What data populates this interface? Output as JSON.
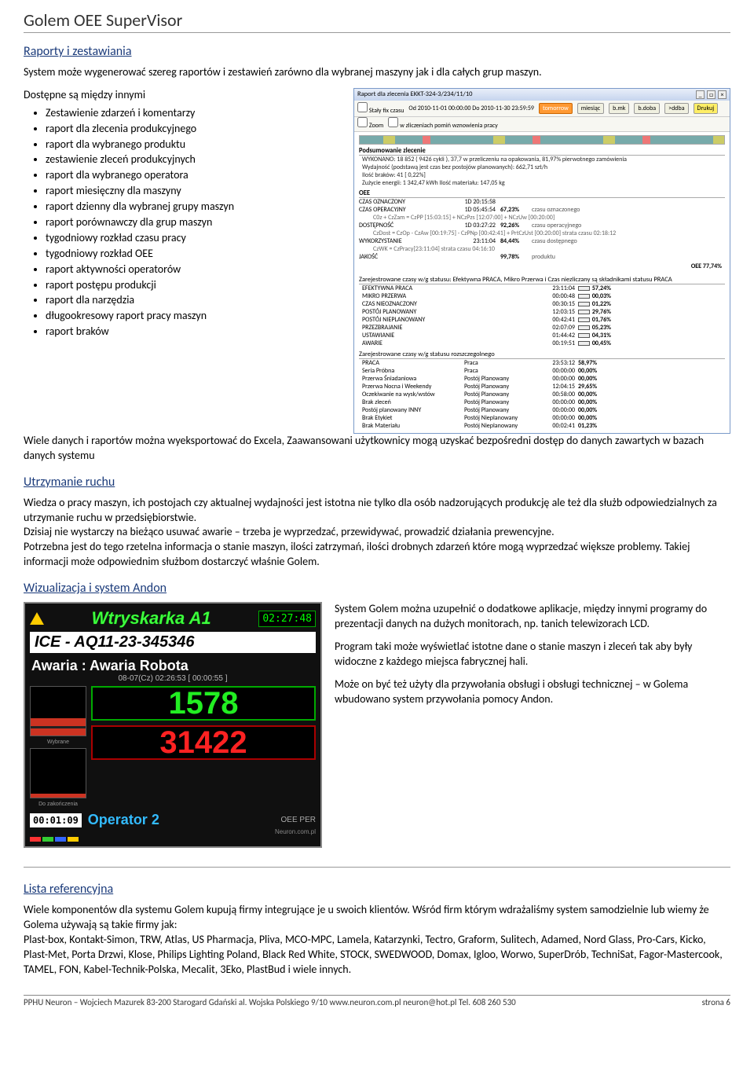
{
  "title": "Golem OEE SuperVisor",
  "sections": {
    "raporty_heading": "Raporty i zestawiania",
    "raporty_intro": "System może wygenerować szereg raportów i zestawień zarówno dla wybranej maszyny jak i dla całych grup maszyn.",
    "dostepne_lead": "Dostępne są między innymi",
    "bullets": [
      "Zestawienie zdarzeń i komentarzy",
      "raport dla zlecenia produkcyjnego",
      "raport dla wybranego produktu",
      "zestawienie zleceń produkcyjnych",
      "raport dla wybranego  operatora",
      "raport miesięczny dla maszyny",
      "raport dzienny dla wybranej grupy maszyn",
      "raport porównawczy dla grup maszyn",
      "tygodniowy rozkład czasu pracy",
      "tygodniowy rozkład OEE",
      "raport aktywności operatorów",
      "raport postępu produkcji",
      "raport dla narzędzia",
      "długookresowy raport pracy maszyn",
      "raport braków"
    ],
    "export_para": "Wiele danych i raportów można wyeksportować do Excela, Zaawansowani użytkownicy mogą uzyskać bezpośredni dostęp do danych zawartych w bazach danych systemu",
    "utrzymanie_heading": "Utrzymanie ruchu",
    "utrzymanie_p1": "Wiedza o pracy maszyn, ich postojach czy aktualnej wydajności jest istotna nie tylko dla osób nadzorujących produkcję ale też dla służb odpowiedzialnych za utrzymanie ruchu w przedsiębiorstwie.",
    "utrzymanie_p2": "Dzisiaj nie wystarczy na bieżąco usuwać awarie – trzeba je wyprzedzać, przewidywać, prowadzić działania prewencyjne.",
    "utrzymanie_p3": "Potrzebna jest do tego rzetelna informacja o stanie maszyn, ilości zatrzymań, ilości drobnych zdarzeń które mogą wyprzedzać większe problemy.  Takiej informacji może odpowiednim służbom dostarczyć właśnie Golem.",
    "wizualizacja_heading": "Wizualizacja i system Andon",
    "andon_p1": "System Golem można uzupełnić o dodatkowe aplikacje, między innymi programy do prezentacji danych na dużych monitorach, np. tanich telewizorach LCD.",
    "andon_p2": "Program taki może wyświetlać istotne dane o stanie maszyn i zleceń tak aby były widoczne z każdego miejsca fabrycznej hali.",
    "andon_p3": "Może on być też użyty dla przywołania obsługi i obsługi technicznej – w Golema wbudowano system przywołania pomocy Andon.",
    "lista_heading": "Lista referencyjna",
    "lista_p1": "Wiele komponentów dla systemu Golem kupują firmy integrujące je u swoich klientów. Wśród firm którym wdrażaliśmy system samodzielnie lub wiemy że Golema używają są takie firmy jak:",
    "lista_p2": "Plast-box, Kontakt-Simon, TRW, Atlas, US Pharmacja, Pliva, MCO-MPC, Lamela, Katarzynki, Tectro, Graform, Sulitech, Adamed, Nord Glass, Pro-Cars, Kicko, Plast-Met, Porta Drzwi, Klose, Philips Lighting Poland, Black Red White, STOCK, SWEDWOOD, Domax, Igloo, Worwo, SuperDrób, TechniSat, Fagor-Mastercook, TAMEL, FON, Kabel-Technik-Polska, Mecalit, 3Eko, PlastBud i wiele innych."
  },
  "report_window": {
    "title": "Raport dla zlecenia EKKT-324-3/234/11/10",
    "chk_fix": "Stały fix czasu",
    "chk_zoom": "Zoom",
    "date_range": "Od 2010-11-01 00:00:00    Do 2010-11-30 23:59:59",
    "btns": {
      "tomorrow": "tomorrow",
      "miesiac": "miesiąc",
      "bmk": "b.mk",
      "bdoba": "b.doba",
      "ddba": ">ddba",
      "drukuj": "Drukuj"
    },
    "sub": "w zliczeniach pomiń wznowienia pracy",
    "summary_title": "Podsumowanie zlecenie",
    "summary_lines": [
      "WYKONANO: 18 852  ( 9426 cykli ),  37,7 w przeliczeniu na opakowania,   81,97% pierwotnego zamówienia",
      "Wydajność (podstawą jest czas bez postojów planowanych):  662,71 szt/h",
      "Ilość braków: 41 [ 0,22%]",
      "Zużycie energii: 1 342,47 kWh  Ilość materiału:  147,05 kg"
    ],
    "oee_title": "OEE",
    "oee_rows": [
      {
        "label": "CZAS OZNACZONY",
        "time": "1D 20:15:58",
        "pct": "",
        "desc": ""
      },
      {
        "label": "CZAS OPERACYJNY",
        "time": "1D 05:45:54",
        "pct": "67,23%",
        "desc": "czasu oznaczonego",
        "note": "C0z + CzZam = CzPP [15:03:15] + NCzPzs [12:07:00] + NCzUw [00:20:00]"
      },
      {
        "label": "DOSTĘPNOŚĆ",
        "time": "1D 03:27:22",
        "pct": "92,26%",
        "desc": "czasu operacyjnego",
        "note": "CzDost = CzOp - CzAw [00:19:75] - CzPNp [00:42:41] + PrtCzUst [00:20:00]      strata czasu 02:18:12"
      },
      {
        "label": "WYKORZYSTANIE",
        "time": "23:11:04",
        "pct": "84,44%",
        "desc": "czasu dostępnego",
        "note": "CzWK = CzPracy[23:11:04]             strata czasu 04:16:10"
      },
      {
        "label": "JAKOŚĆ",
        "time": "",
        "pct": "99,78%",
        "desc": "produktu"
      }
    ],
    "oee_final_label": "OEE 77,74%",
    "status_title": "Zarejestrowane czasy w/g statusu:     Efektywna PRACA, Mikro Przerwa i Czas niezliczany są składnikami statusu PRACA",
    "status_rows": [
      {
        "c1": "EFEKTYWNA PRACA",
        "c2": "",
        "c3": "23:11:04",
        "c4": "57,24%",
        "w": 57
      },
      {
        "c1": "MIKRO PRZERWA",
        "c2": "",
        "c3": "00:00:48",
        "c4": "00,03%",
        "w": 1
      },
      {
        "c1": "CZAS NIEOZNACZONY",
        "c2": "",
        "c3": "00:30:15",
        "c4": "01,22%",
        "w": 2
      },
      {
        "c1": "POSTÓJ PLANOWANY",
        "c2": "",
        "c3": "12:03:15",
        "c4": "29,76%",
        "w": 30
      },
      {
        "c1": "POSTÓJ NIEPLANOWANY",
        "c2": "",
        "c3": "00:42:41",
        "c4": "01,76%",
        "w": 2
      },
      {
        "c1": "PRZEZBRAJANIE",
        "c2": "",
        "c3": "02:07:09",
        "c4": "05,23%",
        "w": 6
      },
      {
        "c1": "USTAWIANIE",
        "c2": "",
        "c3": "01:44:42",
        "c4": "04,31%",
        "w": 5
      },
      {
        "c1": "AWARIE",
        "c2": "",
        "c3": "00:19:51",
        "c4": "00,45%",
        "w": 1
      }
    ],
    "status2_title": "Zarejestrowane czasy w/g statusu rozszczegolnego",
    "status2_rows": [
      {
        "c1": "PRACA",
        "c2": "Praca",
        "c3": "23:53:12",
        "c4": "58,97%"
      },
      {
        "c1": "Seria Próbna",
        "c2": "Praca",
        "c3": "00:00:00",
        "c4": "00,00%"
      },
      {
        "c1": "Przerwa Śniadaniowa",
        "c2": "Postój Planowany",
        "c3": "00:00:00",
        "c4": "00,00%"
      },
      {
        "c1": "Przerwa Nocna i Weekendy",
        "c2": "Postój Planowany",
        "c3": "12:04:15",
        "c4": "29,65%"
      },
      {
        "c1": "Oczekiwanie na wysk/wstów",
        "c2": "Postój Planowany",
        "c3": "00:58:00",
        "c4": "00,00%"
      },
      {
        "c1": "Brak zleceń",
        "c2": "Postój Planowany",
        "c3": "00:00:00",
        "c4": "00,00%"
      },
      {
        "c1": "Postój planowany INNY",
        "c2": "Postój Planowany",
        "c3": "00:00:00",
        "c4": "00,00%"
      },
      {
        "c1": "Brak Etykiet",
        "c2": "Postój Nieplanowany",
        "c3": "00:00:00",
        "c4": "00,00%"
      },
      {
        "c1": "Brak Materiału",
        "c2": "Postój Nieplanowany",
        "c3": "00:02:41",
        "c4": "01,23%"
      }
    ],
    "colors": {
      "bar": "#b04040",
      "border": "#666"
    }
  },
  "andon": {
    "machine": "Wtryskarka A1",
    "clock": "02:27:48",
    "ice": "ICE - AQ11-23-345346",
    "alarm": "Awaria : Awaria Robota",
    "subclock": "08-07(Cz) 02:26:53  [ 00:00:55 ]",
    "counter_green": "1578",
    "counter_red": "31422",
    "barrel1_fill_pct": 35,
    "barrel1_label": "Wybrane",
    "barrel2_fill_pct": 8,
    "barrel2_label": "Do zakończenia",
    "timer": "00:01:09",
    "operator": "Operator 2",
    "oee_label": "OEE  PER",
    "neuron": "Neuron.com.pl",
    "footer_colors": [
      "#ff3333",
      "#33cc33",
      "#3366ff",
      "#ffcc00"
    ]
  },
  "footer": {
    "left": "PPHU Neuron – Wojciech Mazurek  83-200 Starogard Gdański al.  Wojska Polskiego 9/10  www.neuron.com.pl neuron@hot.pl  Tel. 608 260 530",
    "right": "strona 6"
  }
}
